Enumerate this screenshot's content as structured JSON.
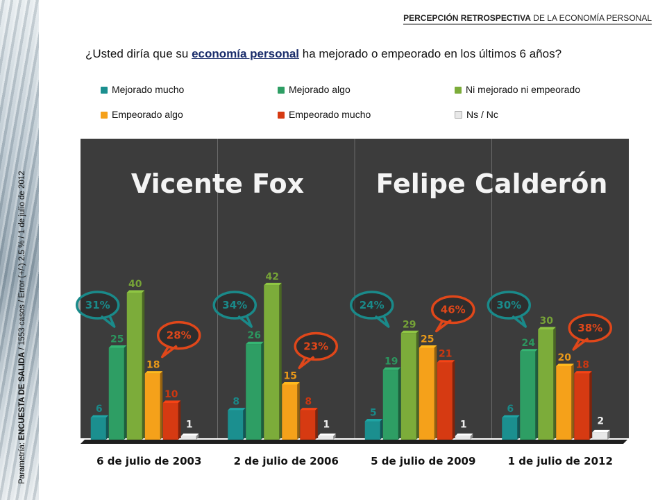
{
  "header": {
    "title_bold": "PERCEPCIÓN RETROSPECTIVA",
    "title_rest": " DE LA ECONOMÍA PERSONAL"
  },
  "question": {
    "part1": "¿Usted diría que su ",
    "highlight": "economía personal",
    "part2": " ha mejorado o empeorado  en los últimos 6 años?"
  },
  "side_caption": {
    "prefix": "Parametría: ",
    "bold": "ENCUESTA DE SALIDA",
    "rest": " / 1553 casos / Error (+/-) 2.5 % / 1 de julio de 2012"
  },
  "colors": {
    "mejorado_mucho": "#1b8f8f",
    "mejorado_algo": "#2e9e64",
    "ni_mejorado": "#7cac3a",
    "empeorado_algo": "#f5a11a",
    "empeorado_mucho": "#d63a12",
    "ns_nc": "#e8e8e8",
    "chart_bg": "#3c3c3c",
    "bubble_positive": "#1a8a8a",
    "bubble_negative": "#e0471a"
  },
  "chart_data": {
    "type": "bar",
    "categories": [
      "6 de julio de 2003",
      "2 de julio de 2006",
      "5 de julio de 2009",
      "1 de julio de 2012"
    ],
    "series": [
      {
        "name": "Mejorado mucho",
        "values": [
          6,
          8,
          5,
          6
        ]
      },
      {
        "name": "Mejorado algo",
        "values": [
          25,
          26,
          19,
          24
        ]
      },
      {
        "name": "Ni mejorado ni empeorado",
        "values": [
          40,
          42,
          29,
          30
        ]
      },
      {
        "name": "Empeorado algo",
        "values": [
          18,
          15,
          25,
          20
        ]
      },
      {
        "name": "Empeorado mucho",
        "values": [
          10,
          8,
          21,
          18
        ]
      },
      {
        "name": "Ns / Nc",
        "values": [
          1,
          1,
          1,
          2
        ]
      }
    ],
    "ylim": [
      0,
      50
    ],
    "grid": false,
    "legend_position": "top",
    "panel_headings": [
      {
        "label": "Vicente Fox",
        "spans": [
          "6 de julio de 2003",
          "2 de julio de 2006"
        ]
      },
      {
        "label": "Felipe Calderón",
        "spans": [
          "5 de julio de 2009",
          "1 de julio de 2012"
        ]
      }
    ],
    "annotations": [
      {
        "category": "6 de julio de 2003",
        "positive": "31%",
        "negative": "28%"
      },
      {
        "category": "2 de julio de 2006",
        "positive": "34%",
        "negative": "23%"
      },
      {
        "category": "5 de julio de 2009",
        "positive": "24%",
        "negative": "46%"
      },
      {
        "category": "1 de julio de 2012",
        "positive": "30%",
        "negative": "38%"
      }
    ]
  }
}
